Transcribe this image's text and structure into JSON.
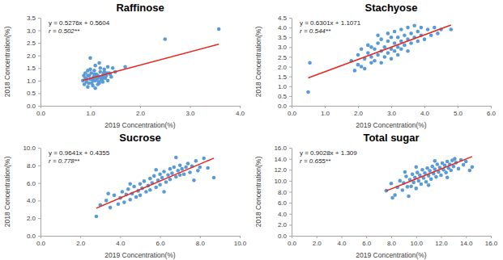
{
  "chart_data": [
    {
      "type": "scatter",
      "title": "Raffinose",
      "x_label": "2019 Concentration(%)",
      "y_label": "2018 Concentration(%)",
      "color": "#5b9bd5",
      "grid": false,
      "annotations": [
        "y = 0.5276x + 0.5604",
        "r = 0.502**"
      ],
      "trendline": {
        "slope": 0.5276,
        "intercept": 0.5604,
        "color": "#e8261f"
      },
      "xlim": [
        0,
        4
      ],
      "ylim": [
        0,
        3.5
      ],
      "xticks": [
        {
          "value": 0,
          "label": "0.0"
        },
        {
          "value": 1,
          "label": "1.0"
        },
        {
          "value": 2,
          "label": "2.0"
        },
        {
          "value": 3,
          "label": "3.0"
        },
        {
          "value": 4,
          "label": "4.0"
        }
      ],
      "yticks": [
        {
          "value": 0,
          "label": "0.0"
        },
        0.5,
        {
          "value": 1,
          "label": "1.0"
        },
        1.5,
        {
          "value": 2,
          "label": "2.0"
        },
        2.5,
        {
          "value": 3,
          "label": "3.0"
        },
        3.5
      ],
      "x": [
        0.85,
        0.88,
        0.9,
        0.92,
        0.95,
        0.97,
        1.0,
        1.02,
        1.05,
        1.07,
        1.1,
        1.12,
        1.15,
        1.18,
        1.2,
        1.22,
        1.25,
        1.28,
        1.3,
        1.33,
        1.35,
        1.4,
        1.45,
        1.5,
        0.9,
        0.95,
        1.0,
        1.05,
        1.1,
        1.15,
        1.2,
        1.25,
        1.3,
        1.35,
        0.93,
        0.98,
        1.03,
        1.08,
        1.13,
        1.18,
        1.23,
        1.28,
        1.0,
        1.1,
        1.2,
        1.15,
        1.05,
        0.95,
        1.25,
        1.32,
        1.38,
        1.42,
        1.12,
        1.08,
        1.17,
        2.5,
        3.58,
        1.7,
        0.87,
        1.27
      ],
      "values": [
        1.0,
        0.85,
        1.1,
        0.95,
        1.2,
        0.9,
        1.05,
        1.3,
        0.8,
        1.15,
        1.0,
        1.25,
        1.1,
        0.9,
        1.35,
        1.05,
        1.2,
        1.45,
        1.1,
        1.3,
        1.0,
        1.25,
        1.5,
        1.35,
        1.3,
        0.75,
        1.45,
        1.1,
        1.6,
        0.85,
        1.15,
        0.95,
        1.25,
        1.55,
        1.05,
        1.2,
        0.9,
        1.4,
        1.15,
        1.7,
        1.0,
        1.35,
        1.9,
        0.7,
        1.5,
        1.2,
        1.0,
        1.4,
        1.1,
        1.2,
        1.3,
        1.15,
        1.05,
        1.25,
        0.95,
        2.65,
        3.05,
        1.55,
        1.2,
        1.3
      ]
    },
    {
      "type": "scatter",
      "title": "Stachyose",
      "x_label": "2019 Concentration(%)",
      "y_label": "2018 Concentration(%)",
      "color": "#5b9bd5",
      "grid": false,
      "annotations": [
        "y = 0.6301x + 1.1071",
        "r = 0.544**"
      ],
      "trendline": {
        "slope": 0.6301,
        "intercept": 1.1071,
        "color": "#e8261f"
      },
      "xlim": [
        0,
        6
      ],
      "ylim": [
        0,
        4.5
      ],
      "xticks": [
        {
          "value": 0,
          "label": "0.0"
        },
        {
          "value": 1,
          "label": "1.0"
        },
        {
          "value": 2,
          "label": "2.0"
        },
        {
          "value": 3,
          "label": "3.0"
        },
        {
          "value": 4,
          "label": "4.0"
        },
        {
          "value": 5,
          "label": "5.0"
        },
        {
          "value": 6,
          "label": "6.0"
        }
      ],
      "yticks": [
        {
          "value": 0,
          "label": "0.0"
        },
        0.5,
        {
          "value": 1,
          "label": "1.0"
        },
        1.5,
        {
          "value": 2,
          "label": "2.0"
        },
        2.5,
        {
          "value": 3,
          "label": "3.0"
        },
        3.5,
        {
          "value": 4,
          "label": "4.0"
        },
        4.5
      ],
      "x": [
        0.5,
        0.55,
        1.8,
        1.9,
        2.0,
        2.0,
        2.1,
        2.2,
        2.2,
        2.3,
        2.3,
        2.4,
        2.4,
        2.5,
        2.5,
        2.6,
        2.6,
        2.7,
        2.7,
        2.7,
        2.8,
        2.8,
        2.9,
        2.9,
        2.9,
        3.0,
        3.0,
        3.0,
        3.1,
        3.1,
        3.1,
        3.2,
        3.2,
        3.2,
        3.3,
        3.3,
        3.3,
        3.4,
        3.4,
        3.5,
        3.5,
        3.5,
        3.6,
        3.6,
        3.7,
        3.7,
        3.8,
        3.8,
        3.9,
        3.9,
        4.0,
        4.1,
        4.2,
        4.3,
        4.4,
        4.5,
        2.6,
        2.4,
        2.1,
        4.8
      ],
      "values": [
        0.7,
        2.2,
        2.3,
        1.8,
        2.6,
        2.1,
        2.9,
        2.4,
        1.9,
        2.7,
        3.1,
        2.2,
        2.5,
        2.9,
        2.3,
        3.2,
        2.6,
        2.8,
        3.4,
        2.2,
        3.0,
        2.5,
        3.3,
        2.7,
        3.7,
        2.9,
        3.5,
        2.4,
        3.2,
        2.8,
        3.8,
        3.0,
        3.5,
        2.6,
        3.3,
        3.9,
        2.9,
        3.6,
        3.1,
        3.4,
        4.0,
        2.8,
        3.7,
        3.2,
        3.5,
        4.1,
        3.3,
        3.8,
        3.6,
        4.0,
        3.4,
        3.9,
        3.6,
        4.0,
        3.7,
        3.9,
        3.6,
        3.0,
        2.0,
        3.9
      ]
    },
    {
      "type": "scatter",
      "title": "Sucrose",
      "x_label": "2019 Concentration(%)",
      "y_label": "2018 Concentration(%)",
      "color": "#5b9bd5",
      "grid": false,
      "annotations": [
        "y = 0.9641x + 0.4355",
        "r = 0.778**"
      ],
      "trendline": {
        "slope": 0.9641,
        "intercept": 0.4355,
        "color": "#e8261f"
      },
      "xlim": [
        0,
        10
      ],
      "ylim": [
        0,
        10
      ],
      "xticks": [
        {
          "value": 0,
          "label": "0.0"
        },
        {
          "value": 2,
          "label": "2.0"
        },
        {
          "value": 4,
          "label": "4.0"
        },
        {
          "value": 6,
          "label": "6.0"
        },
        {
          "value": 8,
          "label": "8.0"
        },
        {
          "value": 10,
          "label": "10.0"
        }
      ],
      "yticks": [
        {
          "value": 0,
          "label": "0.0"
        },
        {
          "value": 2,
          "label": "2.0"
        },
        {
          "value": 4,
          "label": "4.0"
        },
        {
          "value": 6,
          "label": "6.0"
        },
        {
          "value": 8,
          "label": "8.0"
        },
        {
          "value": 10,
          "label": "10.0"
        }
      ],
      "x": [
        2.8,
        3.0,
        3.3,
        3.5,
        3.7,
        3.9,
        4.0,
        4.1,
        4.2,
        4.3,
        4.4,
        4.5,
        4.6,
        4.7,
        4.8,
        4.9,
        5.0,
        5.0,
        5.1,
        5.2,
        5.3,
        5.4,
        5.5,
        5.5,
        5.6,
        5.7,
        5.8,
        5.9,
        6.0,
        6.0,
        6.1,
        6.2,
        6.3,
        6.4,
        6.5,
        6.5,
        6.6,
        6.7,
        6.8,
        6.9,
        7.0,
        7.0,
        7.1,
        7.2,
        7.3,
        7.4,
        7.5,
        7.6,
        7.8,
        7.9,
        8.0,
        8.2,
        8.4,
        8.7,
        5.8,
        4.5,
        6.8,
        3.4,
        7.7,
        6.2
      ],
      "values": [
        2.2,
        3.5,
        4.0,
        3.2,
        4.6,
        3.6,
        4.3,
        5.0,
        3.8,
        4.7,
        5.3,
        4.1,
        4.8,
        5.6,
        4.4,
        5.1,
        5.9,
        4.6,
        5.4,
        6.2,
        5.0,
        5.7,
        6.5,
        5.2,
        6.0,
        6.8,
        5.5,
        6.3,
        7.0,
        5.8,
        6.6,
        7.3,
        6.1,
        6.9,
        7.6,
        6.4,
        7.1,
        7.8,
        6.7,
        7.4,
        8.0,
        6.9,
        7.6,
        7.0,
        7.8,
        8.2,
        7.2,
        7.9,
        8.5,
        7.4,
        7.8,
        8.8,
        7.7,
        6.6,
        7.5,
        5.9,
        8.9,
        4.8,
        6.3,
        5.0
      ]
    },
    {
      "type": "scatter",
      "title": "Total sugar",
      "x_label": "2019 Concentration(%)",
      "y_label": "2018 Concentration(%)",
      "color": "#5b9bd5",
      "grid": false,
      "annotations": [
        "y = 0.9028x + 1.309",
        "r = 0.655**"
      ],
      "trendline": {
        "slope": 0.9028,
        "intercept": 1.309,
        "color": "#e8261f"
      },
      "xlim": [
        0,
        16
      ],
      "ylim": [
        0,
        16
      ],
      "xticks": [
        {
          "value": 0,
          "label": "0.0"
        },
        {
          "value": 2,
          "label": "2.0"
        },
        {
          "value": 4,
          "label": "4.0"
        },
        {
          "value": 6,
          "label": "6.0"
        },
        {
          "value": 8,
          "label": "8.0"
        },
        {
          "value": 10,
          "label": "10.0"
        },
        {
          "value": 12,
          "label": "12.0"
        },
        {
          "value": 14,
          "label": "14.0"
        },
        {
          "value": 16,
          "label": "16.0"
        }
      ],
      "yticks": [
        {
          "value": 0,
          "label": "0.0"
        },
        {
          "value": 2,
          "label": "2.0"
        },
        {
          "value": 4,
          "label": "4.0"
        },
        {
          "value": 6,
          "label": "6.0"
        },
        {
          "value": 8,
          "label": "8.0"
        },
        {
          "value": 10,
          "label": "10.0"
        },
        {
          "value": 12,
          "label": "12.0"
        },
        {
          "value": 14,
          "label": "14.0"
        },
        {
          "value": 16,
          "label": "16.0"
        }
      ],
      "x": [
        7.6,
        8.0,
        8.3,
        8.5,
        8.7,
        8.9,
        9.0,
        9.2,
        9.3,
        9.5,
        9.6,
        9.7,
        9.8,
        9.9,
        10.0,
        10.1,
        10.2,
        10.3,
        10.4,
        10.5,
        10.6,
        10.7,
        10.8,
        10.9,
        11.0,
        11.1,
        11.2,
        11.3,
        11.4,
        11.5,
        11.6,
        11.7,
        11.8,
        11.9,
        12.0,
        12.1,
        12.2,
        12.3,
        12.4,
        12.5,
        12.6,
        12.7,
        12.8,
        12.9,
        13.0,
        13.2,
        13.4,
        13.6,
        13.8,
        14.0,
        14.3,
        14.5,
        9.4,
        8.1,
        11.5,
        10.0,
        12.5,
        9.1,
        13.1,
        11.0
      ],
      "values": [
        8.2,
        9.5,
        7.4,
        8.8,
        10.0,
        8.3,
        9.6,
        10.8,
        8.9,
        10.2,
        9.0,
        11.2,
        9.7,
        10.6,
        8.6,
        11.5,
        10.0,
        11.0,
        9.4,
        12.0,
        10.5,
        11.4,
        9.8,
        12.3,
        10.9,
        11.8,
        10.3,
        12.6,
        11.3,
        12.1,
        10.7,
        13.0,
        11.6,
        12.4,
        11.0,
        13.2,
        12.0,
        12.8,
        11.5,
        13.5,
        12.3,
        13.0,
        11.9,
        13.7,
        12.6,
        13.3,
        12.2,
        13.8,
        12.9,
        13.5,
        11.9,
        12.5,
        7.2,
        6.9,
        13.6,
        12.5,
        10.6,
        11.6,
        14.0,
        9.2
      ]
    }
  ]
}
